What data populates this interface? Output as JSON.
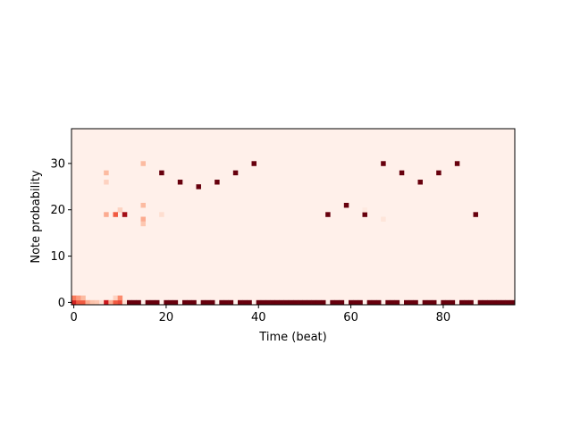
{
  "chart_data": {
    "type": "heatmap",
    "title": "",
    "xlabel": "Time (beat)",
    "ylabel": "Note probability",
    "xlim": [
      -0.5,
      95.5
    ],
    "ylim": [
      -0.5,
      37.5
    ],
    "x_ticks": [
      0,
      20,
      40,
      60,
      80
    ],
    "y_ticks": [
      0,
      10,
      20,
      30
    ],
    "colormap": "Reds",
    "color_min": "#fff5f0",
    "color_max": "#67000d",
    "value_range": [
      0,
      1
    ],
    "background_value": 0.02,
    "cells": [
      [
        0,
        0,
        0.72
      ],
      [
        1,
        0,
        0.55
      ],
      [
        2,
        0,
        0.55
      ],
      [
        3,
        0,
        0.3
      ],
      [
        4,
        0,
        0.22
      ],
      [
        5,
        0,
        0.2
      ],
      [
        6,
        0,
        0.1
      ],
      [
        7,
        0,
        0.75
      ],
      [
        8,
        0,
        0.3
      ],
      [
        9,
        0,
        0.55
      ],
      [
        10,
        0,
        0.6
      ],
      [
        11,
        0,
        0.1
      ],
      [
        12,
        0,
        1
      ],
      [
        13,
        0,
        1
      ],
      [
        14,
        0,
        1
      ],
      [
        16,
        0,
        1
      ],
      [
        17,
        0,
        1
      ],
      [
        18,
        0,
        1
      ],
      [
        20,
        0,
        1
      ],
      [
        21,
        0,
        1
      ],
      [
        22,
        0,
        1
      ],
      [
        24,
        0,
        1
      ],
      [
        25,
        0,
        1
      ],
      [
        26,
        0,
        1
      ],
      [
        28,
        0,
        1
      ],
      [
        29,
        0,
        1
      ],
      [
        30,
        0,
        1
      ],
      [
        32,
        0,
        1
      ],
      [
        33,
        0,
        1
      ],
      [
        34,
        0,
        1
      ],
      [
        36,
        0,
        1
      ],
      [
        37,
        0,
        1
      ],
      [
        38,
        0,
        1
      ],
      [
        40,
        0,
        1
      ],
      [
        41,
        0,
        1
      ],
      [
        42,
        0,
        1
      ],
      [
        43,
        0,
        1
      ],
      [
        44,
        0,
        1
      ],
      [
        45,
        0,
        1
      ],
      [
        46,
        0,
        1
      ],
      [
        47,
        0,
        1
      ],
      [
        48,
        0,
        1
      ],
      [
        49,
        0,
        1
      ],
      [
        50,
        0,
        1
      ],
      [
        51,
        0,
        1
      ],
      [
        52,
        0,
        1
      ],
      [
        53,
        0,
        1
      ],
      [
        54,
        0,
        1
      ],
      [
        56,
        0,
        1
      ],
      [
        57,
        0,
        1
      ],
      [
        58,
        0,
        1
      ],
      [
        60,
        0,
        1
      ],
      [
        61,
        0,
        1
      ],
      [
        62,
        0,
        1
      ],
      [
        64,
        0,
        1
      ],
      [
        65,
        0,
        1
      ],
      [
        66,
        0,
        1
      ],
      [
        68,
        0,
        1
      ],
      [
        69,
        0,
        1
      ],
      [
        70,
        0,
        1
      ],
      [
        72,
        0,
        1
      ],
      [
        73,
        0,
        1
      ],
      [
        74,
        0,
        1
      ],
      [
        76,
        0,
        1
      ],
      [
        77,
        0,
        1
      ],
      [
        78,
        0,
        1
      ],
      [
        80,
        0,
        1
      ],
      [
        81,
        0,
        1
      ],
      [
        82,
        0,
        1
      ],
      [
        84,
        0,
        1
      ],
      [
        85,
        0,
        1
      ],
      [
        86,
        0,
        1
      ],
      [
        88,
        0,
        1
      ],
      [
        89,
        0,
        1
      ],
      [
        90,
        0,
        1
      ],
      [
        91,
        0,
        1
      ],
      [
        92,
        0,
        1
      ],
      [
        93,
        0,
        1
      ],
      [
        94,
        0,
        1
      ],
      [
        95,
        0,
        1
      ],
      [
        0,
        1,
        0.45
      ],
      [
        1,
        1,
        0.35
      ],
      [
        2,
        1,
        0.25
      ],
      [
        9,
        1,
        0.15
      ],
      [
        10,
        1,
        0.4
      ],
      [
        10,
        20,
        0.15
      ],
      [
        11,
        19,
        0.85
      ],
      [
        9,
        19,
        0.55
      ],
      [
        7,
        19,
        0.3
      ],
      [
        15,
        18,
        0.3
      ],
      [
        15,
        17,
        0.2
      ],
      [
        15,
        21,
        0.25
      ],
      [
        15,
        30,
        0.25
      ],
      [
        7,
        28,
        0.25
      ],
      [
        7,
        26,
        0.15
      ],
      [
        19,
        28,
        1
      ],
      [
        23,
        26,
        1
      ],
      [
        27,
        25,
        1
      ],
      [
        31,
        26,
        1
      ],
      [
        35,
        28,
        1
      ],
      [
        39,
        30,
        1
      ],
      [
        55,
        19,
        1
      ],
      [
        59,
        21,
        1
      ],
      [
        63,
        19,
        1
      ],
      [
        67,
        30,
        1
      ],
      [
        71,
        28,
        1
      ],
      [
        75,
        26,
        1
      ],
      [
        79,
        28,
        1
      ],
      [
        83,
        30,
        1
      ],
      [
        87,
        19,
        1
      ],
      [
        19,
        19,
        0.1
      ],
      [
        67,
        18,
        0.07
      ],
      [
        63,
        20,
        0.05
      ]
    ]
  }
}
